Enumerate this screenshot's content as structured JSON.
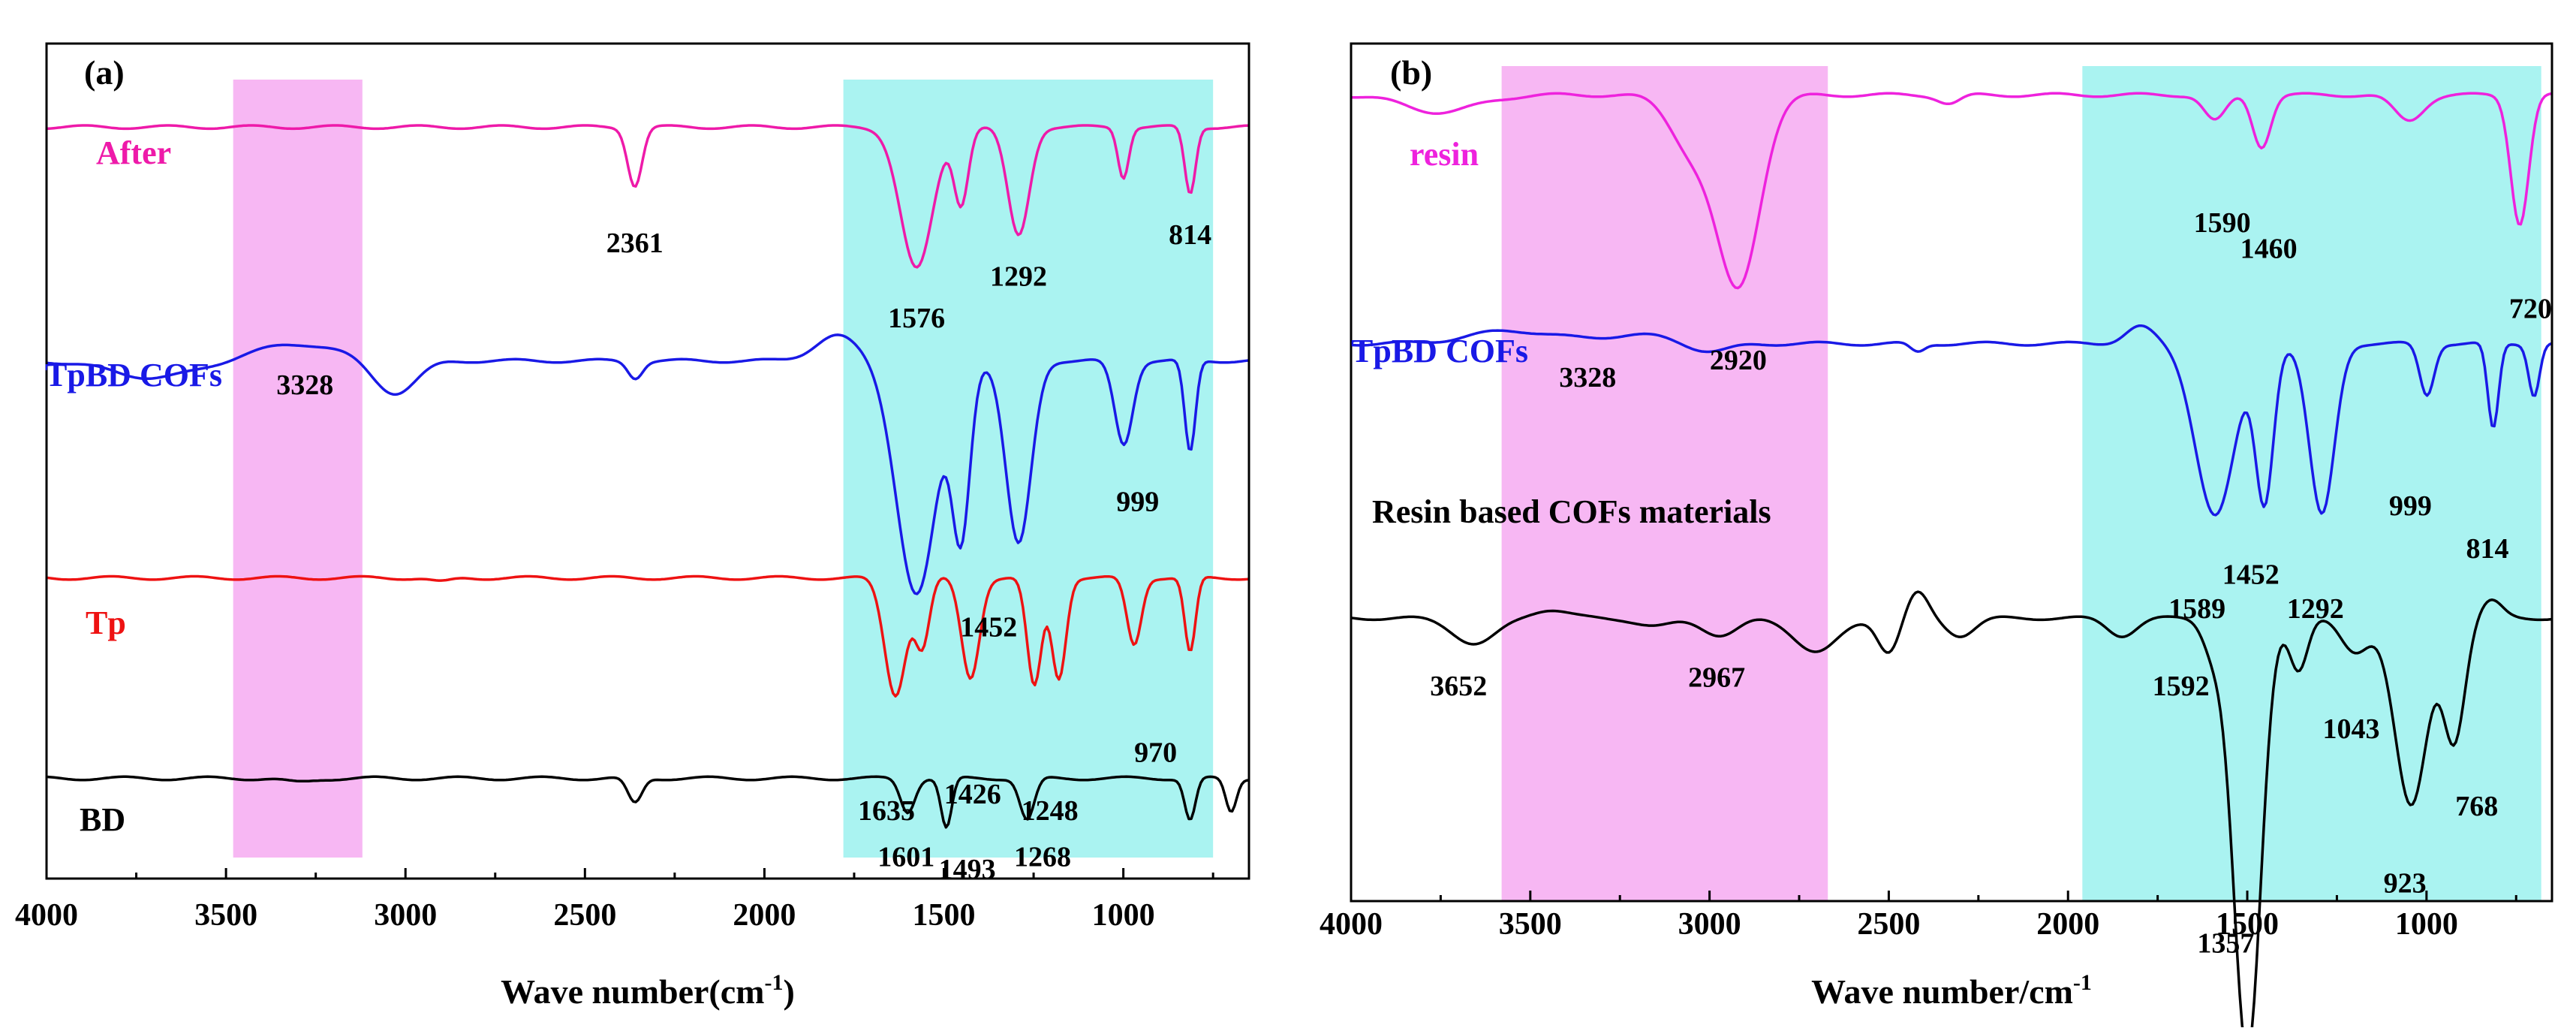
{
  "figure": {
    "colors": {
      "magenta_band": "#f7b7f3",
      "cyan_band": "#aaf3f1",
      "magenta": "#ee1aa9",
      "blue": "#1919e6",
      "red": "#ee1212",
      "black": "#000000",
      "magenta_line": "#ee22dd"
    }
  },
  "chart_data": [
    {
      "type": "line",
      "panel": "(a)",
      "title": "",
      "xlabel": "Wave number(cm",
      "xlabel_sup": "-1",
      "xlabel_end": ")",
      "ylabel": "",
      "xlim": [
        4000,
        650
      ],
      "xticks": [
        4000,
        3500,
        3000,
        2500,
        2000,
        1500,
        1000
      ],
      "tick_labels": [
        "4000",
        "3500",
        "3000",
        "2500",
        "2000",
        "1500",
        "1000"
      ],
      "shaded_regions": [
        {
          "color": "magenta",
          "x_from": 3480,
          "x_to": 3120
        },
        {
          "color": "cyan",
          "x_from": 1780,
          "x_to": 750
        }
      ],
      "series": [
        {
          "name": "After",
          "color": "#ee1aa9",
          "baseline": 0.1,
          "features": [
            [
              2361,
              0.07,
              20
            ],
            [
              1576,
              0.17,
              45
            ],
            [
              1452,
              0.09,
              20
            ],
            [
              1292,
              0.13,
              30
            ],
            [
              1000,
              0.06,
              15
            ],
            [
              814,
              0.08,
              15
            ]
          ],
          "peaks": [
            {
              "label": "2361",
              "x": 2361,
              "y": 0.25
            },
            {
              "label": "1576",
              "x": 1576,
              "y": 0.34
            },
            {
              "label": "1292",
              "x": 1292,
              "y": 0.29
            },
            {
              "label": "814",
              "x": 814,
              "y": 0.24
            }
          ]
        },
        {
          "name": "TpBD COFs",
          "color": "#1919e6",
          "baseline": 0.38,
          "features": [
            [
              3700,
              0.02,
              120
            ],
            [
              3300,
              -0.02,
              120
            ],
            [
              3030,
              0.04,
              60
            ],
            [
              2360,
              0.02,
              20
            ],
            [
              1800,
              -0.03,
              60
            ],
            [
              1576,
              0.28,
              55
            ],
            [
              1452,
              0.2,
              25
            ],
            [
              1292,
              0.22,
              35
            ],
            [
              999,
              0.1,
              25
            ],
            [
              814,
              0.11,
              15
            ]
          ],
          "peaks": [
            {
              "label": "3328",
              "x": 3280,
              "y": 0.42
            },
            {
              "label": "999",
              "x": 960,
              "y": 0.56
            },
            {
              "label": "1452",
              "x": 1375,
              "y": 0.71
            }
          ]
        },
        {
          "name": "Tp",
          "color": "#ee1212",
          "baseline": 0.64,
          "features": [
            [
              2900,
              0.005,
              30
            ],
            [
              1635,
              0.14,
              30
            ],
            [
              1560,
              0.08,
              20
            ],
            [
              1426,
              0.12,
              25
            ],
            [
              1248,
              0.13,
              20
            ],
            [
              1180,
              0.12,
              20
            ],
            [
              970,
              0.08,
              20
            ],
            [
              814,
              0.09,
              15
            ]
          ],
          "peaks": [
            {
              "label": "970",
              "x": 910,
              "y": 0.86
            },
            {
              "label": "1635",
              "x": 1660,
              "y": 0.93
            },
            {
              "label": "1426",
              "x": 1420,
              "y": 0.91
            },
            {
              "label": "1248",
              "x": 1205,
              "y": 0.93
            }
          ]
        },
        {
          "name": "BD",
          "color": "#000000",
          "baseline": 0.88,
          "features": [
            [
              3300,
              0.005,
              40
            ],
            [
              2361,
              0.03,
              20
            ],
            [
              1601,
              0.04,
              20
            ],
            [
              1493,
              0.06,
              15
            ],
            [
              1268,
              0.05,
              20
            ],
            [
              814,
              0.05,
              15
            ],
            [
              700,
              0.04,
              15
            ]
          ],
          "peaks": [
            {
              "label": "1601",
              "x": 1605,
              "y": 0.985
            },
            {
              "label": "1493",
              "x": 1435,
              "y": 1.0
            },
            {
              "label": "1268",
              "x": 1225,
              "y": 0.985
            }
          ]
        }
      ]
    },
    {
      "type": "line",
      "panel": "(b)",
      "title": "",
      "xlabel": "Wave number/cm",
      "xlabel_sup": "-1",
      "xlabel_end": "",
      "ylabel": "",
      "xlim": [
        4000,
        650
      ],
      "xticks": [
        4000,
        3500,
        3000,
        2500,
        2000,
        1500,
        1000
      ],
      "tick_labels": [
        "4000",
        "3500",
        "3000",
        "2500",
        "2000",
        "1500",
        "1000"
      ],
      "shaded_regions": [
        {
          "color": "magenta",
          "x_from": 3580,
          "x_to": 2670
        },
        {
          "color": "cyan",
          "x_from": 1960,
          "x_to": 680
        }
      ],
      "series": [
        {
          "name": "resin",
          "color": "#ee22dd",
          "baseline": 0.06,
          "features": [
            [
              3750,
              0.02,
              100
            ],
            [
              3050,
              0.06,
              60
            ],
            [
              2920,
              0.22,
              60
            ],
            [
              2330,
              0.01,
              30
            ],
            [
              1590,
              0.03,
              30
            ],
            [
              1460,
              0.06,
              25
            ],
            [
              1050,
              0.03,
              40
            ],
            [
              740,
              0.15,
              25
            ]
          ],
          "peaks": [
            {
              "label": "2920",
              "x": 2920,
              "y": 0.38
            },
            {
              "label": "1590",
              "x": 1570,
              "y": 0.22
            },
            {
              "label": "1460",
              "x": 1440,
              "y": 0.25
            },
            {
              "label": "720",
              "x": 710,
              "y": 0.32
            }
          ]
        },
        {
          "name": "TpBD COFs",
          "color": "#1919e6",
          "baseline": 0.35,
          "features": [
            [
              3550,
              -0.015,
              120
            ],
            [
              3200,
              -0.01,
              100
            ],
            [
              3000,
              0.01,
              60
            ],
            [
              2420,
              0.01,
              20
            ],
            [
              1800,
              -0.02,
              40
            ],
            [
              1589,
              0.2,
              55
            ],
            [
              1452,
              0.18,
              25
            ],
            [
              1292,
              0.2,
              35
            ],
            [
              999,
              0.06,
              20
            ],
            [
              814,
              0.1,
              15
            ],
            [
              700,
              0.06,
              15
            ]
          ],
          "peaks": [
            {
              "label": "3328",
              "x": 3340,
              "y": 0.4
            },
            {
              "label": "999",
              "x": 1045,
              "y": 0.55
            },
            {
              "label": "814",
              "x": 830,
              "y": 0.6
            },
            {
              "label": "1452",
              "x": 1490,
              "y": 0.63
            },
            {
              "label": "1589",
              "x": 1640,
              "y": 0.67
            },
            {
              "label": "1292",
              "x": 1310,
              "y": 0.67
            }
          ]
        },
        {
          "name": "Resin based COFs materials",
          "color": "#000000",
          "baseline": 0.67,
          "features": [
            [
              3652,
              0.03,
              60
            ],
            [
              3450,
              -0.01,
              50
            ],
            [
              3150,
              0.01,
              50
            ],
            [
              2967,
              0.02,
              50
            ],
            [
              2700,
              0.04,
              60
            ],
            [
              2500,
              0.04,
              30
            ],
            [
              2420,
              -0.03,
              30
            ],
            [
              2300,
              0.02,
              40
            ],
            [
              1850,
              0.02,
              40
            ],
            [
              1592,
              0.04,
              30
            ],
            [
              1500,
              0.51,
              38
            ],
            [
              1357,
              0.06,
              25
            ],
            [
              1200,
              0.04,
              40
            ],
            [
              1043,
              0.22,
              45
            ],
            [
              923,
              0.14,
              30
            ],
            [
              820,
              -0.02,
              30
            ]
          ],
          "peaks": [
            {
              "label": "3652",
              "x": 3700,
              "y": 0.76
            },
            {
              "label": "2967",
              "x": 2980,
              "y": 0.75
            },
            {
              "label": "1592",
              "x": 1685,
              "y": 0.76
            },
            {
              "label": "1043",
              "x": 1210,
              "y": 0.81
            },
            {
              "label": "768",
              "x": 860,
              "y": 0.9
            },
            {
              "label": "923",
              "x": 1060,
              "y": 0.99
            },
            {
              "label": "1357",
              "x": 1560,
              "y": 1.06
            }
          ]
        }
      ]
    }
  ]
}
